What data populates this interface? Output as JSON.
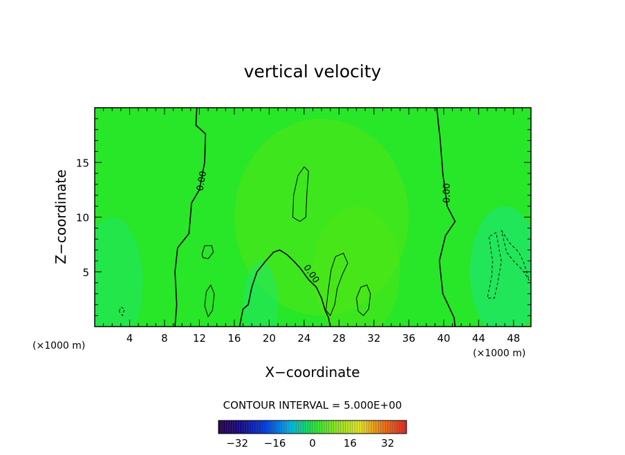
{
  "chart_data": {
    "type": "heatmap",
    "title": "vertical velocity",
    "xlabel": "X−coordinate",
    "ylabel": "Z−coordinate",
    "x_unit_left": "(×1000 m)",
    "x_unit_right": "(×1000 m)",
    "x_range": [
      0,
      50
    ],
    "y_range": [
      0,
      20
    ],
    "x_ticks": [
      4,
      8,
      12,
      16,
      20,
      24,
      28,
      32,
      36,
      40,
      44,
      48
    ],
    "y_ticks": [
      5,
      10,
      15
    ],
    "contour_interval_text": "CONTOUR INTERVAL = 5.000E+00",
    "contour_labels": [
      {
        "text": "0.00",
        "x": 12.3,
        "y": 13.3,
        "angle": -80
      },
      {
        "text": "0.00",
        "x": 40.4,
        "y": 12.2,
        "angle": -90
      },
      {
        "text": "0.00",
        "x": 24.8,
        "y": 4.8,
        "angle": 55
      }
    ],
    "zero_contours": [
      [
        [
          11.7,
          20
        ],
        [
          11.6,
          18.4
        ],
        [
          12.7,
          17.6
        ],
        [
          12.6,
          15
        ],
        [
          12.0,
          12.5
        ],
        [
          11.1,
          11.3
        ],
        [
          10.8,
          8.5
        ],
        [
          9.5,
          7.2
        ],
        [
          9.2,
          5
        ],
        [
          9.4,
          2
        ],
        [
          9.2,
          0
        ]
      ],
      [
        [
          39.2,
          20
        ],
        [
          39.6,
          17
        ],
        [
          39.9,
          14
        ],
        [
          40.4,
          11
        ],
        [
          41.3,
          9.6
        ],
        [
          40.2,
          8.3
        ],
        [
          39.5,
          6
        ],
        [
          39.9,
          3
        ],
        [
          41.2,
          0.8
        ],
        [
          41.3,
          0
        ]
      ],
      [
        [
          16.6,
          0
        ],
        [
          17.0,
          1.6
        ],
        [
          17.6,
          2.0
        ],
        [
          18.0,
          3.6
        ],
        [
          18.6,
          5
        ],
        [
          19.6,
          6.0
        ],
        [
          20.5,
          6.8
        ],
        [
          21.2,
          7.0
        ],
        [
          22.0,
          6.6
        ],
        [
          22.8,
          6.0
        ],
        [
          23.6,
          5.3
        ],
        [
          24.5,
          4.3
        ],
        [
          25.4,
          3.6
        ],
        [
          26.0,
          2.6
        ],
        [
          26.4,
          1.5
        ],
        [
          26.8,
          0.8
        ],
        [
          27.0,
          0
        ]
      ]
    ],
    "solid_small": [
      [
        [
          22.7,
          10
        ],
        [
          22.8,
          12
        ],
        [
          23.3,
          13.8
        ],
        [
          24.0,
          14.6
        ],
        [
          24.5,
          14.2
        ],
        [
          24.3,
          12
        ],
        [
          24.2,
          10
        ],
        [
          23.5,
          9.6
        ],
        [
          22.7,
          10
        ]
      ],
      [
        [
          12.3,
          6.6
        ],
        [
          12.6,
          7.4
        ],
        [
          13.4,
          7.4
        ],
        [
          13.6,
          6.8
        ],
        [
          13.0,
          6.2
        ],
        [
          12.4,
          6.3
        ],
        [
          12.3,
          6.6
        ]
      ],
      [
        [
          26.5,
          1.5
        ],
        [
          26.8,
          3.5
        ],
        [
          27.1,
          5.2
        ],
        [
          27.6,
          6.4
        ],
        [
          28.5,
          6.7
        ],
        [
          29.0,
          5.8
        ],
        [
          28.4,
          4.8
        ],
        [
          27.8,
          3.5
        ],
        [
          27.5,
          2.0
        ],
        [
          27.0,
          1.0
        ],
        [
          26.5,
          1.5
        ]
      ],
      [
        [
          30.2,
          1.4
        ],
        [
          30.0,
          2.6
        ],
        [
          30.5,
          3.6
        ],
        [
          31.2,
          3.8
        ],
        [
          31.6,
          3.0
        ],
        [
          31.4,
          1.6
        ],
        [
          30.8,
          1.0
        ],
        [
          30.2,
          1.4
        ]
      ],
      [
        [
          12.6,
          1.9
        ],
        [
          12.8,
          3.2
        ],
        [
          13.3,
          3.8
        ],
        [
          13.7,
          3.0
        ],
        [
          13.5,
          1.5
        ],
        [
          13.0,
          0.9
        ],
        [
          12.6,
          1.9
        ]
      ]
    ],
    "dashed_negative": [
      [
        [
          45.2,
          8.2
        ],
        [
          45.6,
          6
        ],
        [
          45.5,
          4.6
        ],
        [
          45.0,
          2.6
        ],
        [
          45.8,
          2.6
        ],
        [
          46.2,
          4
        ],
        [
          46.6,
          6
        ],
        [
          46.0,
          8.6
        ],
        [
          45.2,
          8.2
        ]
      ],
      [
        [
          46.6,
          8.8
        ],
        [
          47.6,
          7.6
        ],
        [
          48.6,
          6.8
        ],
        [
          49.2,
          5.8
        ],
        [
          49.8,
          4.2
        ],
        [
          49.0,
          5.2
        ],
        [
          48.0,
          6.0
        ],
        [
          47.2,
          6.8
        ],
        [
          46.6,
          8.8
        ]
      ],
      [
        [
          2.8,
          1.4
        ],
        [
          3.0,
          1.8
        ],
        [
          3.4,
          1.6
        ],
        [
          3.2,
          1.0
        ],
        [
          2.8,
          1.4
        ]
      ]
    ],
    "colorbar": {
      "min": -40,
      "max": 40,
      "ticks": [
        -32,
        -16,
        0,
        16,
        32
      ],
      "tick_labels": [
        "−32",
        "−16",
        "0",
        "16",
        "32"
      ]
    },
    "colors": {
      "field_base": "#28e628",
      "uplift_tint": "#50e614",
      "downdraft_tint": "#1ee66e"
    }
  }
}
